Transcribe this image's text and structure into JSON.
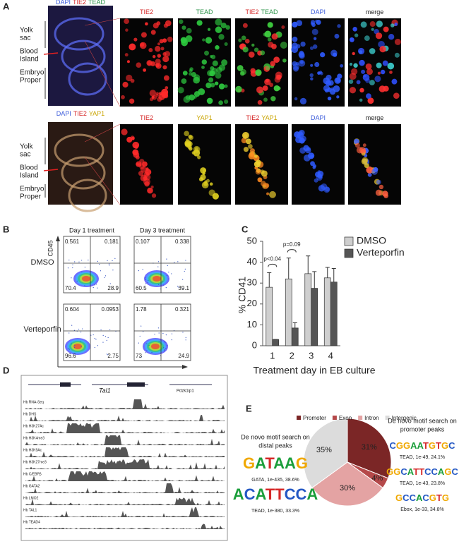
{
  "panel_labels": [
    "A",
    "B",
    "C",
    "D",
    "E"
  ],
  "panel_a": {
    "rows": [
      {
        "overview_title": [
          {
            "text": "DAPI",
            "color": "#3b5bdb"
          },
          {
            "text": "TIE2",
            "color": "#d62828"
          },
          {
            "text": "TEAD",
            "color": "#2b9348"
          }
        ],
        "regions": [
          [
            "Yolk",
            "sac"
          ],
          [
            "Blood",
            "Island"
          ],
          [
            "Embryo",
            "Proper"
          ]
        ],
        "panel_titles": [
          [
            {
              "text": "TIE2",
              "color": "#d62828"
            }
          ],
          [
            {
              "text": "TEAD",
              "color": "#2b9348"
            }
          ],
          [
            {
              "text": "TIE2",
              "color": "#d62828"
            },
            {
              "text": "TEAD",
              "color": "#2b9348"
            }
          ],
          [
            {
              "text": "DAPI",
              "color": "#3b5bdb"
            }
          ],
          [
            {
              "text": "merge",
              "color": "#222222"
            }
          ]
        ]
      },
      {
        "overview_title": [
          {
            "text": "DAPI",
            "color": "#3b5bdb"
          },
          {
            "text": "TIE2",
            "color": "#d62828"
          },
          {
            "text": "YAP1",
            "color": "#c9a400"
          }
        ],
        "regions": [
          [
            "Yolk",
            "sac"
          ],
          [
            "Blood",
            "Island"
          ],
          [
            "Embryo",
            "Proper"
          ]
        ],
        "panel_titles": [
          [
            {
              "text": "TIE2",
              "color": "#d62828"
            }
          ],
          [
            {
              "text": "YAP1",
              "color": "#c9a400"
            }
          ],
          [
            {
              "text": "TIE2",
              "color": "#d62828"
            },
            {
              "text": "YAP1",
              "color": "#c9a400"
            }
          ],
          [
            {
              "text": "DAPI",
              "color": "#3b5bdb"
            }
          ],
          [
            {
              "text": "merge",
              "color": "#222222"
            }
          ]
        ]
      }
    ]
  },
  "panel_b": {
    "y_axis_label": "CD45",
    "x_axis_label": "CD41",
    "column_titles": [
      "Day 1 treatment",
      "Day 3 treatment"
    ],
    "row_titles": [
      "DMSO",
      "Verteporfin"
    ],
    "plots": [
      [
        [
          0.561,
          0.181,
          70.4,
          28.9
        ],
        [
          0.107,
          0.338,
          60.5,
          39.1
        ]
      ],
      [
        [
          0.604,
          0.0953,
          96.6,
          2.75
        ],
        [
          1.78,
          0.321,
          73,
          24.9
        ]
      ]
    ]
  },
  "panel_d": {
    "genes": [
      "Tal1",
      "Pdzk1ip1"
    ],
    "tracks": [
      "Hb RNA-Seq",
      "Hb DHS",
      "Hb H3K27Ac",
      "Hb H3K4me3",
      "Hb H3K9Ac",
      "Hb H3K27me3",
      "Hb C/EBPβ",
      "Hb GATA2",
      "Hb LMO2",
      "Hb TAL1",
      "Hb TEAD4"
    ]
  },
  "panel_e": {
    "left_caption": [
      "De novo motif search on",
      "distal  peaks"
    ],
    "right_caption": [
      "De novo motif search on",
      "promoter  peaks"
    ],
    "left_motifs": [
      {
        "sequence": "GATAAG",
        "caption": "GATA, 1e-435, 38.6%"
      },
      {
        "sequence": "ACATTCCA",
        "caption": "TEAD, 1e-380, 33.3%"
      }
    ],
    "right_motifs": [
      {
        "sequence": "CGGAATGTGC",
        "caption": "TEAD, 1e-49, 24.1%"
      },
      {
        "sequence": "GGCATTCCAGC",
        "caption": "TEAD, 1e-43, 23.8%"
      },
      {
        "sequence": "GCCACGTG",
        "caption": "Ebox, 1e-33, 34.8%"
      }
    ]
  },
  "chart_data": [
    {
      "type": "bar",
      "ylabel": "% CD41",
      "xlabel": "Treatment day in EB culture",
      "categories": [
        "1",
        "2",
        "3",
        "4"
      ],
      "ylim": [
        0,
        50
      ],
      "yticks": [
        0,
        10,
        20,
        30,
        40,
        50
      ],
      "legend": "upper right",
      "annotations": [
        "p<0.04",
        "p=0.09",
        null,
        null
      ],
      "series": [
        {
          "name": "DMSO",
          "color": "#cfcfcf",
          "values": [
            28,
            32,
            34.5,
            32.5
          ],
          "errors": [
            7,
            10,
            8.5,
            5
          ]
        },
        {
          "name": "Verteporfin",
          "color": "#555555",
          "values": [
            3,
            8.5,
            27.5,
            30.5
          ],
          "errors": [
            0,
            2.5,
            8,
            6.5
          ]
        }
      ]
    },
    {
      "type": "pie",
      "categories": [
        "Promoter",
        "Exon",
        "Intron",
        "Intergenic"
      ],
      "values": [
        31,
        4,
        30,
        35
      ],
      "value_labels": [
        "31%",
        "4%",
        "30%",
        "35%"
      ],
      "colors": [
        "#7b2626",
        "#b5494a",
        "#e4a3a3",
        "#dcdcdc"
      ]
    }
  ]
}
